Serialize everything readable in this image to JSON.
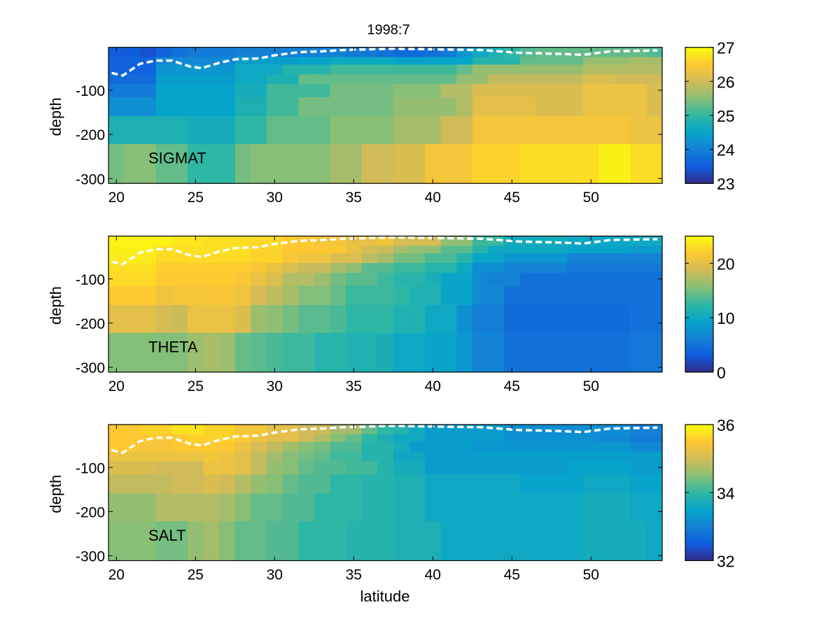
{
  "title": "1998:7",
  "chart_data": {
    "type": "heatmap",
    "title": "1998:7",
    "xlabel": "latitude",
    "ylabel": "depth",
    "xlim": [
      19.5,
      54.5
    ],
    "ylim": [
      -311,
      -3
    ],
    "xticks": [
      20,
      25,
      30,
      35,
      40,
      45,
      50
    ],
    "yticks": [
      -100,
      -200,
      -300
    ],
    "latitudes": [
      20,
      21,
      22,
      23,
      24,
      25,
      26,
      27,
      28,
      29,
      30,
      31,
      32,
      33,
      34,
      35,
      36,
      37,
      38,
      39,
      40,
      41,
      42,
      43,
      44,
      45,
      46,
      47,
      48,
      49,
      50,
      51,
      52,
      53,
      54
    ],
    "depth_bin_edges": [
      -3,
      -25,
      -42,
      -64,
      -86,
      -116,
      -159,
      -222,
      -311
    ],
    "colormap": "parula",
    "dashed_line": {
      "color": "#ffffff",
      "latitude": [
        19.7,
        20.4,
        21.5,
        22.5,
        23.5,
        24.7,
        25.4,
        26.5,
        27.5,
        29,
        30,
        31.5,
        33,
        34.4,
        37.4,
        43.1,
        45.3,
        48.3,
        49.5,
        51.2,
        54.2
      ],
      "depth": [
        -61,
        -67,
        -40,
        -33,
        -33,
        -47,
        -50,
        -38,
        -30,
        -28,
        -21,
        -14,
        -12,
        -9,
        -6,
        -9,
        -15,
        -18,
        -20,
        -12,
        -10
      ]
    },
    "panels": [
      {
        "label": "SIGMAT",
        "clim": [
          23,
          27
        ],
        "colorbar_ticks": [
          23,
          24,
          25,
          26,
          27
        ],
        "values": [
          [
            23.5,
            23.5,
            23.4,
            23.6,
            23.8,
            23.9,
            23.9,
            23.9,
            24.0,
            24.0,
            24.0,
            24.0,
            24.0,
            24.0,
            24.0,
            23.9,
            23.9,
            23.8,
            23.7,
            23.7,
            23.8,
            23.9,
            24.3,
            24.6,
            24.8,
            25.0,
            25.2,
            25.3,
            25.3,
            25.3,
            25.3,
            25.3,
            25.3,
            25.3,
            25.2
          ],
          [
            23.6,
            23.6,
            23.6,
            24.1,
            24.1,
            24.1,
            24.1,
            24.1,
            24.4,
            24.4,
            24.4,
            24.4,
            24.5,
            24.5,
            24.6,
            24.6,
            24.6,
            24.6,
            24.5,
            24.5,
            24.5,
            24.5,
            24.5,
            24.9,
            24.9,
            24.9,
            25.3,
            25.3,
            25.3,
            25.3,
            25.6,
            25.6,
            25.6,
            25.7,
            25.7
          ],
          [
            23.6,
            23.6,
            23.6,
            24.3,
            24.3,
            24.3,
            24.3,
            24.3,
            24.6,
            24.6,
            24.6,
            24.9,
            24.9,
            24.9,
            25.1,
            25.1,
            25.1,
            25.1,
            25.1,
            25.1,
            25.1,
            25.1,
            25.3,
            25.6,
            25.6,
            25.6,
            25.6,
            25.6,
            25.6,
            25.6,
            25.8,
            25.8,
            25.8,
            25.8,
            25.8
          ],
          [
            23.7,
            23.7,
            23.7,
            24.4,
            24.4,
            24.4,
            24.4,
            24.4,
            24.6,
            24.6,
            24.8,
            24.8,
            25.3,
            25.3,
            25.3,
            25.3,
            25.3,
            25.3,
            25.3,
            25.3,
            25.3,
            25.3,
            25.6,
            25.6,
            25.9,
            25.9,
            25.9,
            25.9,
            25.9,
            25.9,
            26.1,
            26.1,
            26.0,
            26.0,
            26.0
          ],
          [
            23.9,
            23.9,
            23.9,
            24.5,
            24.5,
            24.5,
            24.5,
            24.5,
            24.7,
            24.7,
            25.1,
            25.1,
            25.1,
            25.1,
            25.4,
            25.4,
            25.4,
            25.4,
            25.5,
            25.5,
            25.5,
            25.8,
            25.8,
            26.1,
            26.1,
            26.1,
            26.1,
            26.1,
            26.1,
            26.1,
            26.3,
            26.3,
            26.3,
            26.3,
            26.1
          ],
          [
            24.2,
            24.2,
            24.2,
            24.5,
            24.5,
            24.5,
            24.5,
            24.5,
            24.8,
            24.8,
            25.1,
            25.1,
            25.4,
            25.4,
            25.4,
            25.4,
            25.4,
            25.4,
            25.6,
            25.6,
            25.6,
            25.6,
            25.8,
            26.2,
            26.2,
            26.2,
            26.2,
            26.1,
            26.1,
            26.1,
            26.3,
            26.3,
            26.3,
            26.3,
            26.1
          ],
          [
            24.8,
            24.8,
            24.8,
            24.8,
            24.8,
            24.7,
            24.7,
            24.7,
            25.0,
            25.0,
            25.3,
            25.3,
            25.3,
            25.3,
            25.5,
            25.5,
            25.5,
            25.5,
            25.7,
            25.7,
            25.7,
            26.0,
            26.0,
            26.4,
            26.4,
            26.4,
            26.4,
            26.4,
            26.4,
            26.4,
            26.4,
            26.4,
            26.4,
            26.3,
            26.3
          ],
          [
            25.4,
            25.5,
            25.5,
            25.3,
            25.3,
            25.0,
            25.0,
            25.0,
            25.4,
            25.5,
            25.5,
            25.5,
            25.5,
            25.5,
            25.7,
            25.7,
            26.0,
            26.0,
            26.1,
            26.1,
            26.4,
            26.4,
            26.4,
            26.6,
            26.6,
            26.6,
            26.7,
            26.7,
            26.7,
            26.7,
            26.7,
            26.9,
            26.9,
            26.7,
            26.7
          ]
        ]
      },
      {
        "label": "THETA",
        "clim": [
          0,
          25
        ],
        "colorbar_ticks": [
          0,
          10,
          20
        ],
        "values": [
          [
            24.5,
            24.5,
            24.5,
            24.5,
            23.8,
            23.8,
            23.3,
            23.3,
            23.3,
            22.9,
            22.9,
            22.0,
            22.0,
            21.2,
            21.2,
            20.3,
            20.3,
            21.0,
            19.2,
            19.2,
            19.2,
            16.0,
            16.0,
            13.0,
            13.0,
            10.5,
            10.5,
            10.5,
            10.5,
            9.8,
            9.8,
            9.8,
            9.8,
            10.2,
            10.2
          ],
          [
            24.3,
            24.3,
            24.3,
            23.3,
            23.3,
            23.3,
            23.3,
            23.3,
            23.3,
            22.5,
            22.5,
            21.9,
            21.9,
            21.9,
            21.9,
            20.5,
            19.0,
            18.5,
            17.0,
            16.0,
            16.0,
            14.0,
            14.0,
            12.0,
            10.0,
            10.0,
            10.0,
            10.0,
            10.0,
            9.4,
            9.4,
            9.4,
            9.4,
            8.5,
            8.5
          ],
          [
            24.0,
            24.0,
            24.0,
            23.0,
            23.0,
            23.0,
            23.0,
            23.0,
            23.0,
            22.5,
            22.5,
            21.5,
            20.8,
            20.8,
            19.5,
            19.5,
            18.0,
            17.0,
            15.0,
            15.0,
            13.5,
            13.5,
            12.0,
            9.5,
            9.5,
            8.0,
            8.0,
            8.0,
            8.0,
            6.5,
            6.5,
            6.5,
            6.5,
            6.5,
            6.5
          ],
          [
            23.3,
            23.3,
            23.3,
            22.2,
            22.2,
            22.2,
            22.2,
            22.2,
            22.2,
            21.5,
            20.5,
            19.5,
            18.5,
            18.5,
            17.0,
            16.0,
            14.0,
            14.0,
            13.0,
            13.0,
            12.0,
            12.0,
            10.0,
            7.5,
            7.5,
            6.5,
            6.5,
            6.5,
            6.5,
            5.5,
            5.5,
            5.5,
            5.5,
            5.5,
            5.5
          ],
          [
            23.0,
            23.0,
            23.0,
            22.0,
            22.0,
            22.0,
            22.0,
            22.0,
            21.5,
            20.5,
            19.5,
            17.5,
            17.5,
            16.5,
            15.0,
            14.0,
            14.0,
            13.0,
            12.0,
            12.0,
            11.0,
            9.5,
            9.5,
            7.0,
            6.5,
            6.5,
            5.0,
            5.0,
            5.0,
            5.0,
            5.0,
            5.0,
            5.0,
            5.0,
            5.0
          ],
          [
            22.0,
            22.0,
            22.0,
            21.0,
            21.3,
            21.3,
            21.5,
            21.5,
            21.0,
            19.0,
            18.0,
            17.0,
            15.5,
            15.5,
            14.5,
            13.0,
            13.0,
            13.0,
            12.5,
            11.5,
            11.5,
            9.5,
            9.5,
            7.0,
            7.0,
            5.0,
            5.0,
            5.0,
            5.0,
            5.0,
            5.0,
            5.0,
            5.0,
            5.0,
            5.0
          ],
          [
            20.0,
            20.0,
            20.0,
            19.0,
            18.5,
            20.5,
            20.5,
            20.5,
            19.5,
            16.5,
            16.0,
            15.0,
            14.0,
            14.0,
            13.5,
            12.5,
            12.5,
            12.5,
            11.5,
            11.5,
            10.0,
            10.0,
            7.5,
            6.0,
            6.0,
            4.5,
            4.5,
            4.5,
            4.5,
            4.5,
            4.5,
            4.5,
            4.5,
            5.0,
            5.0
          ],
          [
            15.5,
            15.5,
            15.5,
            15.5,
            15.5,
            16.5,
            17.0,
            16.5,
            14.5,
            14.0,
            13.5,
            13.0,
            13.0,
            12.0,
            12.0,
            11.5,
            11.5,
            11.0,
            10.0,
            10.0,
            9.5,
            9.5,
            8.0,
            6.5,
            6.5,
            5.0,
            5.0,
            5.0,
            5.0,
            5.0,
            5.0,
            5.0,
            5.0,
            5.5,
            5.5
          ]
        ]
      },
      {
        "label": "SALT",
        "clim": [
          32,
          36
        ],
        "colorbar_ticks": [
          32,
          34,
          36
        ],
        "values": [
          [
            35.5,
            35.5,
            35.6,
            35.6,
            35.75,
            35.75,
            35.6,
            35.6,
            35.4,
            35.4,
            35.2,
            35.2,
            35.0,
            35.0,
            34.7,
            34.7,
            34.3,
            34.0,
            33.9,
            33.6,
            33.4,
            33.4,
            33.4,
            33.4,
            33.4,
            33.2,
            33.2,
            33.2,
            33.2,
            33.2,
            33.2,
            33.2,
            33.2,
            33.0,
            33.0
          ],
          [
            35.5,
            35.5,
            35.5,
            35.5,
            35.5,
            35.6,
            35.6,
            35.6,
            35.5,
            35.3,
            35.2,
            35.2,
            35.0,
            34.8,
            34.5,
            34.3,
            34.0,
            33.8,
            33.6,
            33.6,
            33.4,
            33.4,
            33.4,
            33.4,
            33.4,
            33.2,
            33.2,
            33.2,
            33.2,
            33.2,
            33.2,
            33.1,
            33.1,
            32.9,
            32.9
          ],
          [
            35.5,
            35.5,
            35.4,
            35.4,
            35.5,
            35.5,
            35.5,
            35.5,
            35.3,
            35.1,
            34.9,
            34.7,
            34.5,
            34.4,
            34.2,
            34.2,
            33.9,
            33.9,
            33.7,
            33.4,
            33.4,
            33.4,
            33.4,
            33.3,
            33.3,
            33.3,
            33.3,
            33.3,
            33.3,
            33.3,
            33.3,
            33.3,
            33.3,
            33.1,
            33.1
          ],
          [
            35.3,
            35.3,
            35.3,
            35.3,
            35.3,
            35.3,
            35.4,
            35.3,
            35.2,
            34.9,
            34.7,
            34.5,
            34.4,
            34.3,
            34.1,
            34.1,
            33.9,
            33.9,
            33.6,
            33.6,
            33.4,
            33.4,
            33.4,
            33.4,
            33.4,
            33.4,
            33.4,
            33.4,
            33.4,
            33.4,
            33.4,
            33.4,
            33.4,
            33.4,
            33.4
          ],
          [
            35.1,
            35.1,
            35.1,
            35.0,
            35.0,
            35.0,
            35.3,
            35.3,
            35.2,
            34.9,
            34.6,
            34.5,
            34.3,
            34.2,
            34.2,
            34.1,
            34.1,
            33.9,
            33.7,
            33.7,
            33.4,
            33.4,
            33.4,
            33.4,
            33.4,
            33.4,
            33.4,
            33.4,
            33.4,
            33.5,
            33.5,
            33.5,
            33.5,
            33.4,
            33.4
          ],
          [
            34.9,
            34.9,
            34.9,
            34.9,
            35.0,
            35.0,
            35.1,
            35.0,
            34.8,
            34.6,
            34.5,
            34.3,
            34.2,
            34.2,
            34.0,
            34.0,
            33.9,
            33.9,
            33.8,
            33.8,
            33.6,
            33.6,
            33.6,
            33.6,
            33.6,
            33.6,
            33.5,
            33.5,
            33.5,
            33.5,
            33.6,
            33.6,
            33.6,
            33.5,
            33.5
          ],
          [
            34.6,
            34.6,
            34.6,
            34.8,
            34.8,
            34.8,
            34.8,
            34.7,
            34.5,
            34.3,
            34.3,
            34.2,
            34.2,
            34.0,
            34.0,
            34.0,
            33.9,
            33.9,
            33.8,
            33.8,
            33.6,
            33.6,
            33.6,
            33.6,
            33.6,
            33.6,
            33.6,
            33.6,
            33.6,
            33.6,
            33.7,
            33.7,
            33.7,
            33.6,
            33.6
          ],
          [
            34.5,
            34.5,
            34.5,
            34.4,
            34.4,
            34.6,
            34.7,
            34.5,
            34.3,
            34.3,
            34.2,
            34.2,
            34.0,
            34.0,
            34.0,
            33.9,
            33.9,
            33.9,
            33.8,
            33.8,
            33.8,
            33.6,
            33.6,
            33.6,
            33.6,
            33.6,
            33.6,
            33.6,
            33.6,
            33.6,
            33.7,
            33.7,
            33.7,
            33.7,
            33.6
          ]
        ]
      }
    ]
  }
}
